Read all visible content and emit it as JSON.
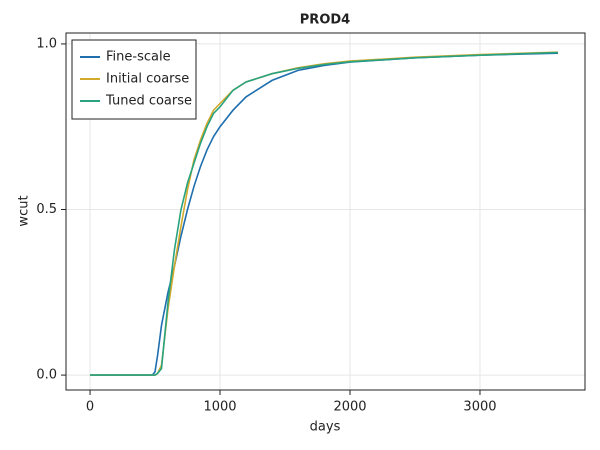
{
  "chart_data": {
    "type": "line",
    "title": "PROD4",
    "x_label": "days",
    "y_label": "wcut",
    "x": [
      0,
      400,
      480,
      500,
      520,
      550,
      600,
      650,
      700,
      750,
      800,
      850,
      900,
      950,
      1000,
      1100,
      1200,
      1400,
      1600,
      1800,
      2000,
      2500,
      3000,
      3600
    ],
    "series": [
      {
        "name": "Fine-scale",
        "color": "#1f6fae",
        "values": [
          0,
          0,
          0,
          0.01,
          0.06,
          0.15,
          0.25,
          0.33,
          0.42,
          0.5,
          0.57,
          0.63,
          0.68,
          0.72,
          0.75,
          0.8,
          0.84,
          0.89,
          0.92,
          0.935,
          0.945,
          0.958,
          0.966,
          0.972
        ]
      },
      {
        "name": "Initial coarse",
        "color": "#d1a92b",
        "values": [
          0,
          0,
          0,
          0,
          0.005,
          0.03,
          0.2,
          0.33,
          0.45,
          0.56,
          0.65,
          0.71,
          0.76,
          0.8,
          0.82,
          0.86,
          0.885,
          0.91,
          0.928,
          0.94,
          0.948,
          0.96,
          0.968,
          0.975
        ]
      },
      {
        "name": "Tuned coarse",
        "color": "#29a37f",
        "values": [
          0,
          0,
          0,
          0,
          0.005,
          0.02,
          0.22,
          0.38,
          0.5,
          0.58,
          0.64,
          0.7,
          0.75,
          0.79,
          0.81,
          0.86,
          0.885,
          0.91,
          0.926,
          0.938,
          0.946,
          0.958,
          0.966,
          0.974
        ]
      }
    ],
    "xlim": [
      -185,
      3808
    ],
    "ylim": [
      -0.045,
      1.033
    ],
    "xticks": [
      0,
      1000,
      2000,
      3000
    ],
    "yticks": [
      {
        "value": 0,
        "label": "0.0"
      },
      {
        "value": 0.5,
        "label": "0.5"
      },
      {
        "value": 1,
        "label": "1.0"
      }
    ],
    "grid": true,
    "legend": "upper-left"
  }
}
